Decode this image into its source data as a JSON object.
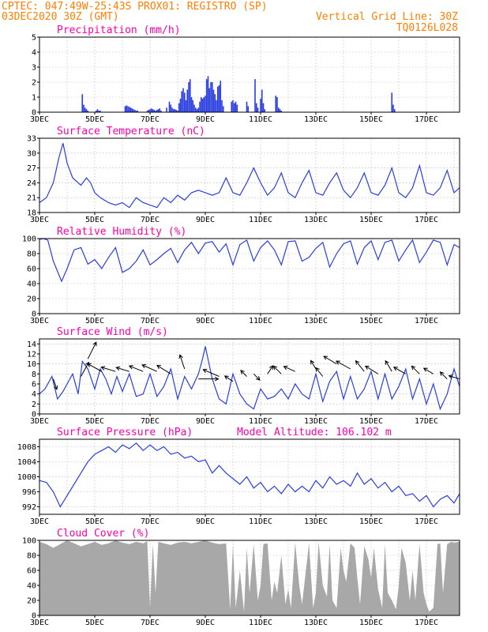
{
  "header": {
    "line1": "CPTEC:   047:49W-25:43S   PROX01: REGISTRO (SP)",
    "line2_left": "03DEC2020 30Z (GMT)",
    "line2_right": "Vertical Grid Line: 30Z",
    "line3_right": "TQ0126L028"
  },
  "colors": {
    "header": "#ff7f00",
    "panel_title": "#ff00aa",
    "series": "#2a3ee0",
    "cloud": "#a8a8a8",
    "arrow": "#000000"
  },
  "chart_data": [
    {
      "id": "precip",
      "type": "bar",
      "title": "Precipitation (mm/h)",
      "ylim": [
        0,
        5
      ],
      "yticks": [
        0,
        1,
        2,
        3,
        4,
        5
      ],
      "xlim": [
        3,
        18.2
      ],
      "xticks": [
        3,
        5,
        7,
        9,
        11,
        13,
        15,
        17
      ],
      "xtick_labels": [
        "3DEC",
        "5DEC",
        "7DEC",
        "9DEC",
        "11DEC",
        "13DEC",
        "15DEC",
        "17DEC"
      ],
      "x": [
        4.55,
        4.6,
        4.65,
        4.7,
        4.75,
        5.05,
        5.1,
        5.15,
        5.2,
        6.1,
        6.15,
        6.2,
        6.25,
        6.3,
        6.35,
        6.4,
        6.45,
        6.5,
        6.55,
        6.9,
        6.95,
        7.0,
        7.05,
        7.1,
        7.15,
        7.2,
        7.25,
        7.3,
        7.35,
        7.4,
        7.6,
        7.7,
        7.75,
        7.8,
        7.85,
        7.9,
        7.95,
        8.0,
        8.05,
        8.1,
        8.15,
        8.2,
        8.25,
        8.3,
        8.35,
        8.4,
        8.45,
        8.5,
        8.55,
        8.6,
        8.65,
        8.7,
        8.75,
        8.8,
        8.85,
        8.9,
        8.95,
        9.0,
        9.05,
        9.1,
        9.15,
        9.2,
        9.25,
        9.3,
        9.35,
        9.4,
        9.45,
        9.5,
        9.55,
        9.6,
        9.65,
        9.95,
        10.0,
        10.05,
        10.1,
        10.15,
        10.5,
        10.55,
        10.8,
        10.85,
        10.9,
        11.0,
        11.05,
        11.1,
        11.15,
        11.55,
        11.6,
        11.65,
        11.7,
        11.75,
        15.75,
        15.8,
        15.85
      ],
      "values": [
        1.2,
        0.5,
        0.3,
        0.2,
        0.1,
        0.1,
        0.2,
        0.1,
        0.1,
        0.4,
        0.45,
        0.4,
        0.35,
        0.3,
        0.25,
        0.2,
        0.15,
        0.1,
        0.1,
        0.1,
        0.15,
        0.2,
        0.25,
        0.2,
        0.15,
        0.1,
        0.15,
        0.2,
        0.25,
        0.1,
        0.3,
        0.7,
        0.5,
        0.3,
        0.2,
        0.2,
        0.15,
        0.1,
        0.6,
        0.9,
        1.4,
        1.6,
        1.3,
        0.8,
        1.5,
        2.0,
        2.2,
        1.0,
        0.8,
        0.5,
        0.3,
        0.2,
        0.3,
        0.7,
        1.0,
        0.9,
        1.0,
        1.1,
        2.2,
        2.4,
        1.6,
        2.0,
        2.0,
        1.5,
        1.2,
        0.8,
        1.7,
        1.8,
        2.1,
        0.8,
        0.4,
        0.7,
        0.8,
        0.6,
        0.7,
        0.5,
        0.7,
        0.4,
        2.2,
        0.6,
        0.3,
        0.9,
        1.5,
        0.6,
        0.2,
        1.1,
        1.0,
        0.3,
        0.2,
        0.1,
        1.3,
        0.5,
        0.2
      ]
    },
    {
      "id": "temp",
      "type": "line",
      "title": "Surface Temperature (nC)",
      "ylim": [
        18,
        33
      ],
      "yticks": [
        18,
        21,
        24,
        27,
        30,
        33
      ],
      "xlim": [
        3,
        18.2
      ],
      "xticks": [
        3,
        5,
        7,
        9,
        11,
        13,
        15,
        17
      ],
      "xtick_labels": [
        "3DEC",
        "5DEC",
        "7DEC",
        "9DEC",
        "11DEC",
        "13DEC",
        "15DEC",
        "17DEC"
      ],
      "x": [
        3.0,
        3.25,
        3.5,
        3.7,
        3.85,
        4.0,
        4.2,
        4.5,
        4.7,
        4.85,
        5.0,
        5.2,
        5.5,
        5.75,
        6.0,
        6.25,
        6.5,
        6.75,
        7.0,
        7.25,
        7.5,
        7.75,
        8.0,
        8.25,
        8.5,
        8.75,
        9.0,
        9.25,
        9.5,
        9.75,
        10.0,
        10.25,
        10.5,
        10.75,
        11.0,
        11.25,
        11.5,
        11.75,
        12.0,
        12.25,
        12.5,
        12.75,
        13.0,
        13.25,
        13.5,
        13.75,
        14.0,
        14.25,
        14.5,
        14.75,
        15.0,
        15.25,
        15.5,
        15.75,
        16.0,
        16.25,
        16.5,
        16.75,
        17.0,
        17.25,
        17.5,
        17.75,
        18.0,
        18.2
      ],
      "values": [
        20.0,
        21.0,
        24.0,
        29.0,
        32.0,
        28.0,
        25.0,
        23.5,
        25.0,
        24.0,
        22.0,
        21.0,
        20.0,
        19.5,
        20.0,
        19.0,
        21.0,
        20.0,
        19.5,
        19.0,
        21.0,
        20.0,
        21.5,
        20.5,
        22.0,
        22.5,
        22.0,
        21.5,
        22.0,
        25.0,
        22.0,
        21.5,
        24.0,
        27.0,
        24.0,
        21.5,
        23.0,
        26.0,
        22.0,
        21.0,
        24.0,
        26.5,
        22.0,
        21.5,
        24.0,
        26.0,
        22.5,
        21.0,
        23.0,
        26.0,
        22.0,
        21.5,
        23.5,
        27.0,
        22.0,
        21.0,
        23.0,
        27.5,
        22.0,
        21.5,
        23.0,
        26.5,
        22.0,
        23.0
      ]
    },
    {
      "id": "rh",
      "type": "line",
      "title": "Relative Humidity (%)",
      "ylim": [
        0,
        100
      ],
      "yticks": [
        0,
        20,
        40,
        60,
        80,
        100
      ],
      "xlim": [
        3,
        18.2
      ],
      "xticks": [
        3,
        5,
        7,
        9,
        11,
        13,
        15,
        17
      ],
      "xtick_labels": [
        "3DEC",
        "5DEC",
        "7DEC",
        "9DEC",
        "11DEC",
        "13DEC",
        "15DEC",
        "17DEC"
      ],
      "x": [
        3.0,
        3.15,
        3.3,
        3.5,
        3.8,
        4.0,
        4.25,
        4.5,
        4.75,
        5.0,
        5.25,
        5.5,
        5.75,
        6.0,
        6.25,
        6.5,
        6.75,
        7.0,
        7.25,
        7.5,
        7.75,
        8.0,
        8.25,
        8.5,
        8.75,
        9.0,
        9.25,
        9.5,
        9.75,
        10.0,
        10.25,
        10.5,
        10.75,
        11.0,
        11.25,
        11.5,
        11.75,
        12.0,
        12.25,
        12.5,
        12.75,
        13.0,
        13.25,
        13.5,
        13.75,
        14.0,
        14.25,
        14.5,
        14.75,
        15.0,
        15.25,
        15.5,
        15.75,
        16.0,
        16.25,
        16.5,
        16.75,
        17.0,
        17.25,
        17.5,
        17.75,
        18.0,
        18.2
      ],
      "values": [
        99.0,
        100.0,
        98.0,
        70.0,
        43.0,
        60.0,
        85.0,
        88.0,
        66.0,
        72.0,
        60.0,
        75.0,
        88.0,
        55.0,
        60.0,
        70.0,
        85.0,
        65.0,
        72.0,
        80.0,
        87.0,
        68.0,
        85.0,
        95.0,
        80.0,
        94.0,
        96.0,
        82.0,
        93.0,
        65.0,
        92.0,
        98.0,
        70.0,
        88.0,
        97.0,
        85.0,
        65.0,
        96.0,
        97.0,
        70.0,
        75.0,
        87.0,
        95.0,
        62.0,
        80.0,
        93.0,
        97.0,
        66.0,
        88.0,
        97.0,
        72.0,
        95.0,
        98.0,
        70.0,
        85.0,
        98.0,
        68.0,
        82.0,
        98.0,
        95.0,
        65.0,
        92.0,
        88.0
      ]
    },
    {
      "id": "wind",
      "type": "line",
      "title": "Surface Wind (m/s)",
      "ylim": [
        0,
        15
      ],
      "yticks": [
        0,
        2,
        4,
        6,
        8,
        10,
        12,
        14
      ],
      "xlim": [
        3,
        18.2
      ],
      "xticks": [
        3,
        5,
        7,
        9,
        11,
        13,
        15,
        17
      ],
      "xtick_labels": [
        "3DEC",
        "5DEC",
        "7DEC",
        "9DEC",
        "11DEC",
        "13DEC",
        "15DEC",
        "17DEC"
      ],
      "x": [
        3.0,
        3.2,
        3.45,
        3.65,
        3.85,
        4.0,
        4.2,
        4.4,
        4.55,
        4.75,
        5.0,
        5.2,
        5.4,
        5.6,
        5.8,
        6.0,
        6.25,
        6.5,
        6.75,
        7.0,
        7.25,
        7.5,
        7.75,
        8.0,
        8.25,
        8.5,
        8.75,
        8.9,
        9.0,
        9.25,
        9.5,
        9.75,
        10.0,
        10.25,
        10.5,
        10.75,
        11.0,
        11.25,
        11.5,
        11.75,
        12.0,
        12.25,
        12.5,
        12.75,
        13.0,
        13.25,
        13.5,
        13.75,
        14.0,
        14.25,
        14.5,
        14.75,
        15.0,
        15.25,
        15.5,
        15.75,
        16.0,
        16.25,
        16.5,
        16.75,
        17.0,
        17.25,
        17.5,
        17.75,
        18.0,
        18.2
      ],
      "values": [
        4.0,
        5.0,
        7.5,
        3.0,
        4.5,
        6.0,
        8.0,
        4.0,
        10.5,
        9.0,
        5.0,
        9.0,
        7.0,
        4.0,
        7.5,
        4.5,
        8.0,
        3.5,
        4.0,
        8.0,
        3.5,
        5.5,
        9.0,
        3.0,
        7.5,
        5.0,
        8.0,
        11.0,
        13.5,
        7.0,
        3.0,
        2.0,
        8.0,
        4.0,
        2.0,
        1.0,
        5.0,
        3.0,
        3.5,
        5.0,
        3.0,
        6.0,
        4.0,
        3.0,
        8.0,
        2.5,
        6.5,
        8.5,
        3.0,
        7.5,
        3.0,
        5.0,
        8.5,
        3.0,
        8.0,
        3.0,
        5.5,
        9.0,
        3.0,
        7.0,
        2.0,
        6.0,
        1.0,
        4.0,
        9.0,
        5.5
      ]
    },
    {
      "id": "pres",
      "type": "line",
      "title": "Surface Pressure (hPa)",
      "annotation": "Model Altitude: 106.102 m",
      "ylim": [
        990,
        1010
      ],
      "yticks": [
        992,
        996,
        1000,
        1004,
        1008
      ],
      "xlim": [
        3,
        18.2
      ],
      "xticks": [
        3,
        5,
        7,
        9,
        11,
        13,
        15,
        17
      ],
      "xtick_labels": [
        "3DEC",
        "5DEC",
        "7DEC",
        "9DEC",
        "11DEC",
        "13DEC",
        "15DEC",
        "17DEC"
      ],
      "x": [
        3.0,
        3.25,
        3.5,
        3.75,
        4.0,
        4.25,
        4.5,
        4.75,
        5.0,
        5.25,
        5.5,
        5.75,
        6.0,
        6.25,
        6.5,
        6.75,
        7.0,
        7.25,
        7.5,
        7.75,
        8.0,
        8.25,
        8.5,
        8.75,
        9.0,
        9.25,
        9.5,
        9.75,
        10.0,
        10.25,
        10.5,
        10.75,
        11.0,
        11.25,
        11.5,
        11.75,
        12.0,
        12.25,
        12.5,
        12.75,
        13.0,
        13.25,
        13.5,
        13.75,
        14.0,
        14.25,
        14.5,
        14.75,
        15.0,
        15.25,
        15.5,
        15.75,
        16.0,
        16.25,
        16.5,
        16.75,
        17.0,
        17.25,
        17.5,
        17.75,
        18.0,
        18.2
      ],
      "values": [
        999.0,
        998.5,
        996.0,
        992.0,
        995.0,
        998.0,
        1001.0,
        1004.0,
        1006.0,
        1007.0,
        1008.0,
        1006.5,
        1008.5,
        1007.5,
        1009.0,
        1007.0,
        1008.5,
        1007.0,
        1008.0,
        1006.0,
        1006.5,
        1005.0,
        1005.5,
        1004.0,
        1004.5,
        1001.0,
        1003.0,
        1001.0,
        999.5,
        998.0,
        1000.0,
        997.0,
        998.5,
        996.0,
        997.5,
        995.5,
        998.0,
        996.0,
        997.5,
        996.0,
        999.0,
        997.0,
        1000.0,
        998.0,
        999.0,
        997.5,
        1001.0,
        998.0,
        999.5,
        997.0,
        998.5,
        996.0,
        997.5,
        995.0,
        995.5,
        993.5,
        995.0,
        992.0,
        994.0,
        995.0,
        993.0,
        995.5
      ]
    },
    {
      "id": "cloud",
      "type": "area",
      "title": "Cloud Cover (%)",
      "ylim": [
        0,
        100
      ],
      "yticks": [
        0,
        20,
        40,
        60,
        80,
        100
      ],
      "xlim": [
        3,
        18.2
      ],
      "xticks": [
        3,
        5,
        7,
        9,
        11,
        13,
        15,
        17
      ],
      "xtick_labels": [
        "3DEC",
        "5DEC",
        "7DEC",
        "9DEC",
        "11DEC",
        "13DEC",
        "15DEC",
        "17DEC"
      ],
      "x": [
        3.0,
        3.25,
        3.5,
        3.75,
        4.0,
        4.25,
        4.5,
        4.75,
        5.0,
        5.25,
        5.5,
        5.75,
        6.0,
        6.25,
        6.5,
        6.75,
        6.9,
        7.0,
        7.1,
        7.2,
        7.3,
        7.5,
        7.75,
        8.0,
        8.25,
        8.5,
        8.75,
        9.0,
        9.25,
        9.5,
        9.75,
        9.9,
        10.0,
        10.1,
        10.25,
        10.4,
        10.5,
        10.6,
        10.75,
        10.9,
        11.0,
        11.1,
        11.25,
        11.4,
        11.5,
        11.6,
        11.75,
        11.9,
        12.0,
        12.1,
        12.25,
        12.4,
        12.5,
        12.75,
        12.9,
        13.0,
        13.1,
        13.25,
        13.4,
        13.5,
        13.6,
        13.75,
        13.9,
        14.0,
        14.1,
        14.25,
        14.4,
        14.5,
        14.6,
        14.75,
        14.9,
        15.0,
        15.1,
        15.25,
        15.4,
        15.5,
        15.6,
        15.75,
        15.9,
        16.0,
        16.1,
        16.25,
        16.4,
        16.5,
        16.6,
        16.75,
        16.9,
        17.0,
        17.1,
        17.25,
        17.4,
        17.5,
        17.6,
        17.75,
        17.9,
        18.0,
        18.2
      ],
      "values": [
        98,
        95,
        90,
        95,
        100,
        96,
        92,
        95,
        98,
        94,
        96,
        100,
        97,
        95,
        98,
        96,
        99,
        10,
        95,
        30,
        98,
        96,
        94,
        97,
        98,
        96,
        98,
        100,
        97,
        95,
        96,
        8,
        95,
        10,
        60,
        5,
        90,
        30,
        95,
        20,
        40,
        95,
        96,
        20,
        45,
        30,
        80,
        15,
        35,
        10,
        97,
        40,
        15,
        96,
        10,
        30,
        98,
        40,
        25,
        95,
        20,
        10,
        90,
        60,
        45,
        96,
        90,
        50,
        15,
        92,
        75,
        50,
        90,
        35,
        10,
        95,
        30,
        20,
        8,
        40,
        90,
        70,
        20,
        60,
        20,
        95,
        30,
        15,
        5,
        10,
        95,
        96,
        30,
        95,
        98,
        97,
        98
      ]
    }
  ],
  "wind_vectors": {
    "x": [
      3.5,
      4.5,
      4.75,
      5.25,
      5.75,
      6.25,
      6.75,
      7.25,
      7.75,
      8.25,
      8.75,
      9.5,
      10.0,
      10.5,
      10.75,
      11.25,
      11.75,
      12.25,
      13.0,
      13.25,
      13.75,
      14.25,
      14.75,
      15.25,
      15.75,
      16.25,
      16.75,
      17.25,
      17.75,
      18.2
    ],
    "y": [
      7.0,
      7.5,
      11.0,
      8.5,
      8.5,
      8.5,
      8.5,
      8.5,
      8.0,
      9.0,
      7.0,
      7.5,
      6.5,
      7.5,
      8.0,
      8.0,
      8.0,
      8.5,
      9.0,
      7.5,
      10.0,
      9.0,
      8.5,
      8.0,
      8.5,
      8.0,
      8.0,
      8.0,
      7.0,
      7.0
    ],
    "u": [
      0.3,
      0.5,
      0.4,
      -0.9,
      -1.0,
      -1.0,
      -1.0,
      -0.9,
      -0.8,
      -0.3,
      0.9,
      -0.7,
      -0.3,
      -0.1,
      0.1,
      0.2,
      -0.6,
      -0.9,
      -0.3,
      -0.4,
      -1.0,
      -0.9,
      -0.4,
      -0.8,
      -0.3,
      -0.7,
      -0.3,
      -0.5,
      -0.3,
      -1.0
    ],
    "v": [
      -0.9,
      0.9,
      0.8,
      0.5,
      0.3,
      0.3,
      0.4,
      0.4,
      0.5,
      0.9,
      0.0,
      0.3,
      0.2,
      0.1,
      -0.1,
      0.3,
      0.6,
      0.4,
      0.5,
      0.5,
      0.6,
      0.5,
      0.5,
      0.5,
      0.5,
      0.4,
      0.3,
      0.3,
      0.3,
      0.3
    ],
    "speed": [
      5,
      9,
      11,
      9,
      8,
      7,
      8,
      9,
      9,
      8,
      12,
      10,
      4,
      3,
      3,
      4,
      5,
      6,
      4,
      5,
      8,
      9,
      7,
      8,
      6,
      7,
      5,
      5,
      4,
      5
    ]
  }
}
